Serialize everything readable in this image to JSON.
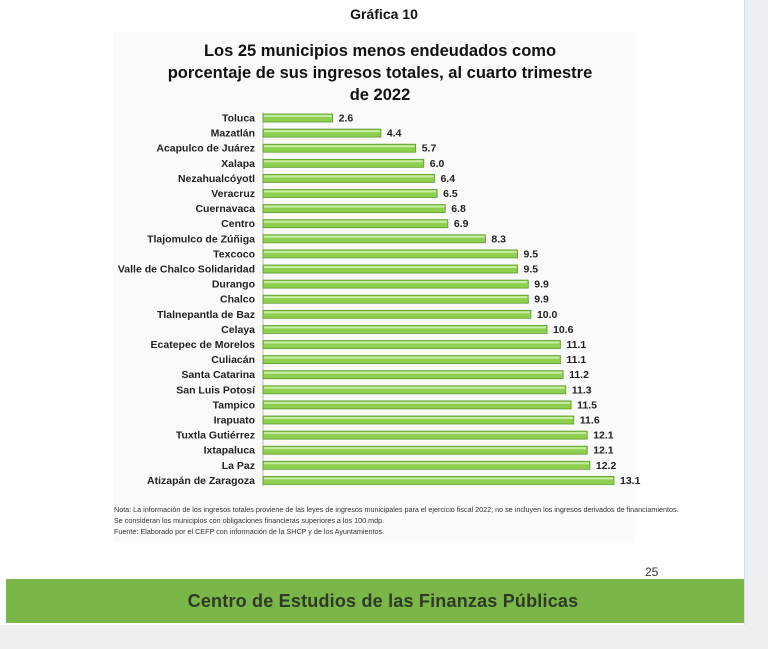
{
  "figure_label": "Gráfica 10",
  "chart_data": {
    "type": "bar",
    "orientation": "horizontal",
    "title_lines": [
      "Los 25 municipios menos endeudados como",
      "porcentaje de sus ingresos totales, al cuarto trimestre",
      "de 2022"
    ],
    "xlabel": "",
    "ylabel": "",
    "grid": false,
    "legend": "none",
    "xlim": [
      0,
      13.1
    ],
    "bar_color": "#8fcf4f",
    "categories": [
      "Toluca",
      "Mazatlán",
      "Acapulco de Juárez",
      "Xalapa",
      "Nezahualcóyotl",
      "Veracruz",
      "Cuernavaca",
      "Centro",
      "Tlajomulco de Zúñiga",
      "Texcoco",
      "Valle de Chalco Solidaridad",
      "Durango",
      "Chalco",
      "Tlalnepantla de Baz",
      "Celaya",
      "Ecatepec de Morelos",
      "Culiacán",
      "Santa Catarina",
      "San Luis Potosí",
      "Tampico",
      "Irapuato",
      "Tuxtla Gutiérrez",
      "Ixtapaluca",
      "La Paz",
      "Atizapán de Zaragoza"
    ],
    "values": [
      2.6,
      4.4,
      5.7,
      6.0,
      6.4,
      6.5,
      6.8,
      6.9,
      8.3,
      9.5,
      9.5,
      9.9,
      9.9,
      10.0,
      10.6,
      11.1,
      11.1,
      11.2,
      11.3,
      11.5,
      11.6,
      12.1,
      12.1,
      12.2,
      13.1
    ],
    "value_labels": [
      "2.6",
      "4.4",
      "5.7",
      "6.0",
      "6.4",
      "6.5",
      "6.8",
      "6.9",
      "8.3",
      "9.5",
      "9.5",
      "9.9",
      "9.9",
      "10.0",
      "10.6",
      "11.1",
      "11.1",
      "11.2",
      "11.3",
      "11.5",
      "11.6",
      "12.1",
      "12.1",
      "12.2",
      "13.1"
    ]
  },
  "notes": [
    "Nota: La información de los ingresos totales proviene de las leyes de ingresos municipales para el ejercicio fiscal 2022; no se incluyen los ingresos derivados de financiamientos.",
    "Se consideran los municipios con obligaciones financieras superiores a los 100 mdp.",
    "Fuente: Elaborado por el CEFP con información de la SHCP y de los Ayuntamientos."
  ],
  "page_number": "25",
  "footer": "Centro de Estudios de las Finanzas Públicas",
  "colors": {
    "footer_band": "#7ab648",
    "bar_fill": "#8fcf4f"
  }
}
